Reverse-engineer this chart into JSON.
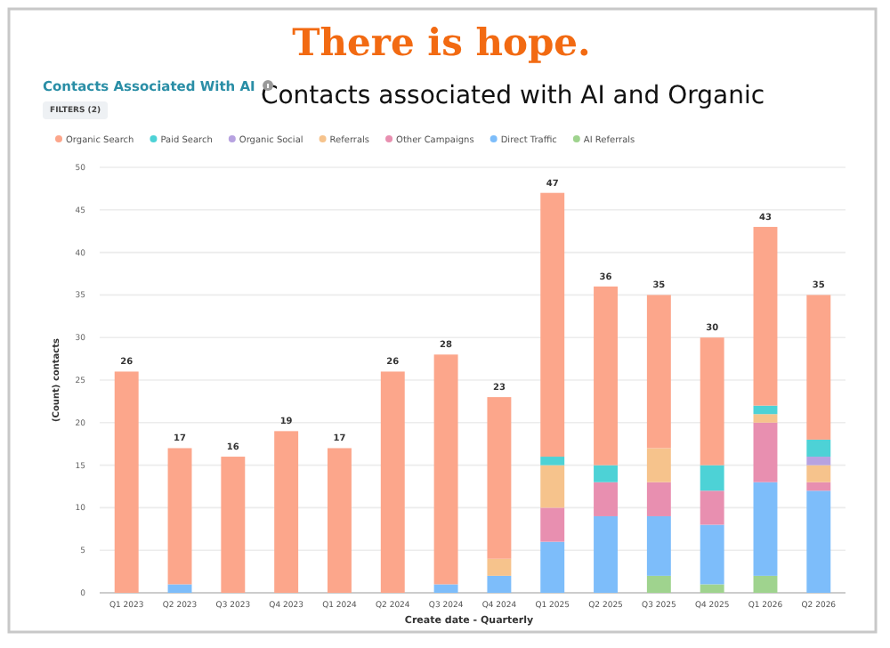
{
  "chart_data": {
    "type": "bar",
    "title": "There is hope.",
    "subtitle": "Contacts associated with AI and Organic",
    "annotations": [
      "Contacts Associated With AI",
      "FILTERS (2)"
    ],
    "xlabel": "Create date - Quarterly",
    "ylabel": "(Count) contacts",
    "categories": [
      "Q1 2023",
      "Q2 2023",
      "Q3 2023",
      "Q4 2023",
      "Q1 2024",
      "Q2 2024",
      "Q3 2024",
      "Q4 2024",
      "Q1 2025",
      "Q2 2025",
      "Q3 2025",
      "Q4 2025",
      "Q1 2026",
      "Q2 2026"
    ],
    "stacked": true,
    "series": [
      {
        "name": "AI Referrals",
        "color": "#9fd38e",
        "values": [
          0,
          0,
          0,
          0,
          0,
          0,
          0,
          0,
          0,
          0,
          2,
          1,
          2,
          0
        ]
      },
      {
        "name": "Direct Traffic",
        "color": "#7dbdfa",
        "values": [
          0,
          1,
          0,
          0,
          0,
          0,
          1,
          2,
          6,
          9,
          7,
          7,
          11,
          12
        ]
      },
      {
        "name": "Other Campaigns",
        "color": "#e88fb0",
        "values": [
          0,
          0,
          0,
          0,
          0,
          0,
          0,
          0,
          4,
          4,
          4,
          4,
          7,
          1
        ]
      },
      {
        "name": "Referrals",
        "color": "#f6c38c",
        "values": [
          0,
          0,
          0,
          0,
          0,
          0,
          0,
          2,
          5,
          0,
          4,
          0,
          1,
          2
        ]
      },
      {
        "name": "Organic Social",
        "color": "#b7a2e0",
        "values": [
          0,
          0,
          0,
          0,
          0,
          0,
          0,
          0,
          0,
          0,
          0,
          0,
          0,
          1
        ]
      },
      {
        "name": "Paid Search",
        "color": "#4dd2d6",
        "values": [
          0,
          0,
          0,
          0,
          0,
          0,
          0,
          0,
          1,
          2,
          0,
          3,
          1,
          2
        ]
      },
      {
        "name": "Organic Search",
        "color": "#fca68b",
        "values": [
          26,
          16,
          16,
          19,
          17,
          26,
          27,
          19,
          31,
          21,
          18,
          15,
          21,
          17
        ]
      }
    ],
    "totals": [
      "26",
      "17",
      "16",
      "19",
      "17",
      "26",
      "28",
      "23",
      "47",
      "36",
      "35",
      "30",
      "43",
      "35"
    ],
    "ylim": [
      0,
      50
    ],
    "yticks": [
      0,
      5,
      10,
      15,
      20,
      25,
      30,
      35,
      40,
      45,
      50
    ],
    "grid": "y",
    "legend": "top"
  }
}
